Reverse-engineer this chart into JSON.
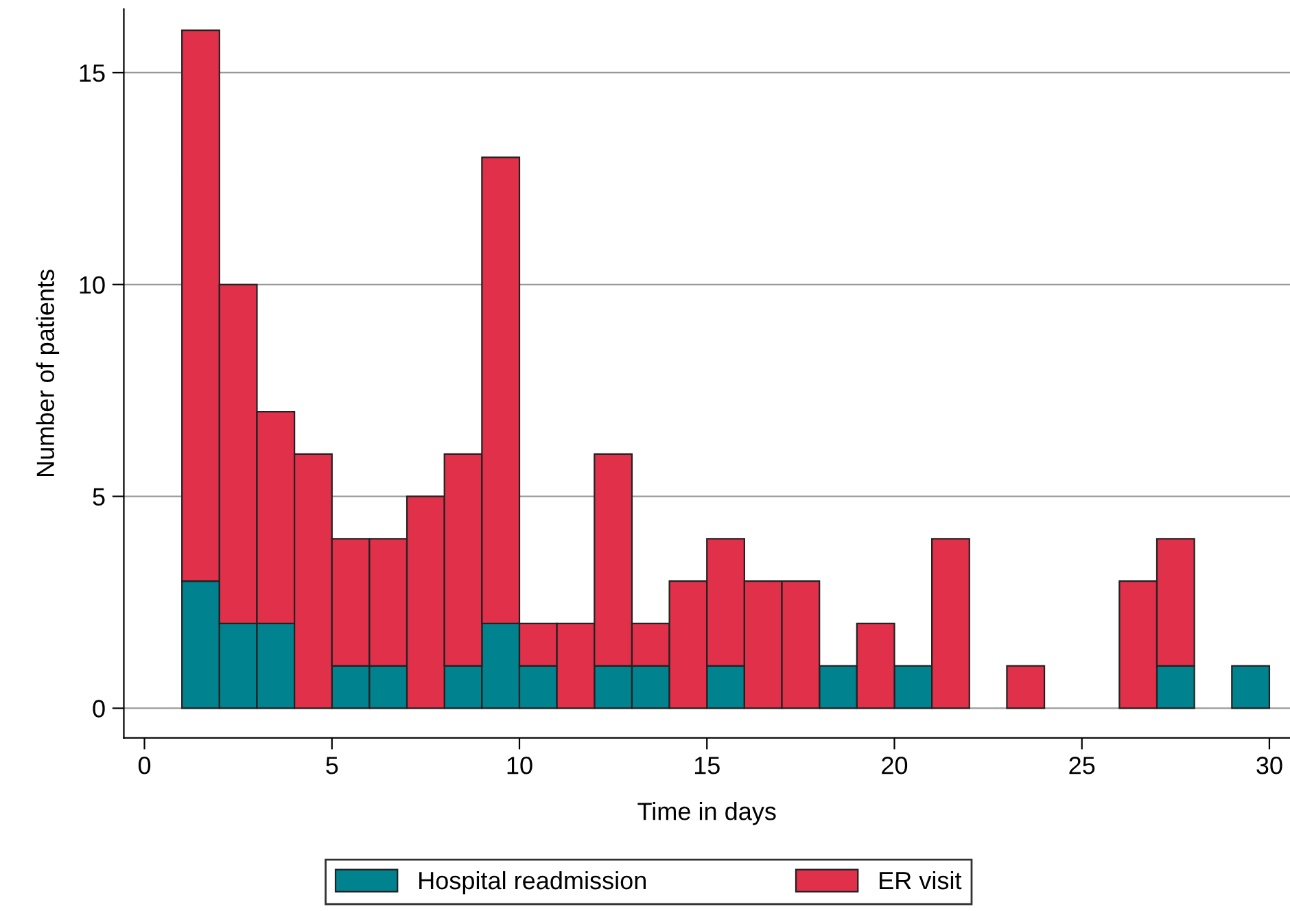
{
  "chart_data": {
    "type": "bar",
    "xlabel": "Time in days",
    "ylabel": "Number of patients",
    "x": [
      1.5,
      2.5,
      3.5,
      4.5,
      5.5,
      6.5,
      7.5,
      8.5,
      9.5,
      10.5,
      11.5,
      12.5,
      13.5,
      14.5,
      15.5,
      16.5,
      17.5,
      18.5,
      19.5,
      20.5,
      21.5,
      23.5,
      26.5,
      27.5,
      29.5
    ],
    "stacked": true,
    "series": [
      {
        "name": "Hospital readmission",
        "color": "#00838f",
        "values": [
          3,
          2,
          2,
          0,
          1,
          1,
          0,
          1,
          2,
          1,
          0,
          1,
          1,
          0,
          1,
          0,
          0,
          1,
          0,
          1,
          0,
          0,
          0,
          1,
          1
        ]
      },
      {
        "name": "ER visit",
        "color": "#e0304a",
        "values": [
          13,
          8,
          5,
          6,
          3,
          3,
          5,
          5,
          11,
          1,
          2,
          5,
          1,
          3,
          3,
          3,
          3,
          0,
          2,
          0,
          4,
          1,
          3,
          3,
          0
        ]
      }
    ],
    "xlim": [
      -0.55,
      30.55
    ],
    "xticks": [
      0,
      5,
      10,
      15,
      20,
      25,
      30
    ],
    "ylim": [
      -0.7,
      16.5
    ],
    "yticks": [
      0,
      5,
      10,
      15
    ],
    "grid": "y",
    "legend": "bottom"
  }
}
